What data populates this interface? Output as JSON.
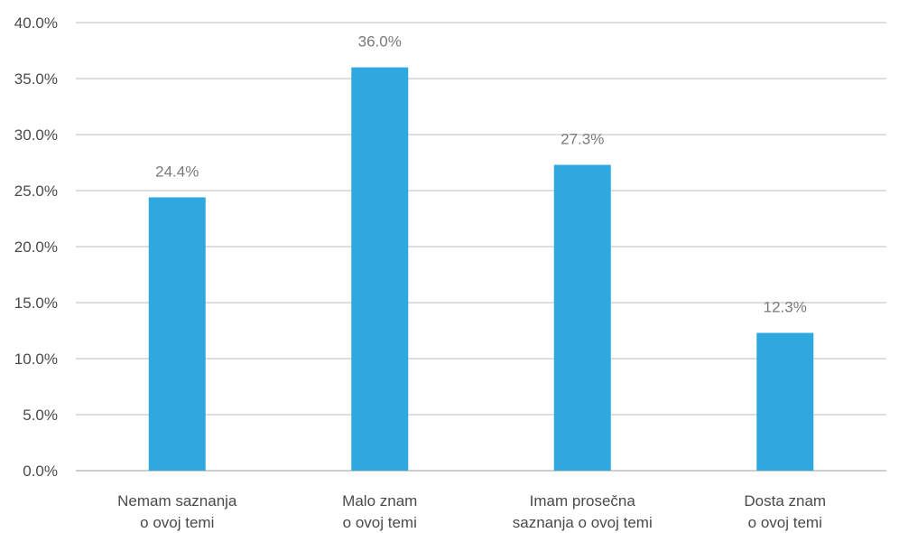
{
  "chart_data": {
    "type": "bar",
    "categories": [
      [
        "Nemam saznanja",
        "o ovoj temi"
      ],
      [
        "Malo znam",
        "o ovoj temi"
      ],
      [
        "Imam prosečna",
        "saznanja o ovoj temi"
      ],
      [
        "Dosta znam",
        "o ovoj temi"
      ]
    ],
    "values": [
      24.4,
      36.0,
      27.3,
      12.3
    ],
    "data_labels": [
      "24.4%",
      "36.0%",
      "27.3%",
      "12.3%"
    ],
    "title": "",
    "xlabel": "",
    "ylabel": "",
    "ylim": [
      0,
      40
    ],
    "yticks": [
      0,
      5,
      10,
      15,
      20,
      25,
      30,
      35,
      40
    ],
    "ytick_labels": [
      "0.0%",
      "5.0%",
      "10.0%",
      "15.0%",
      "20.0%",
      "25.0%",
      "30.0%",
      "35.0%",
      "40.0%"
    ],
    "grid": true,
    "legend": "none",
    "bar_color": "#2ea8df"
  }
}
